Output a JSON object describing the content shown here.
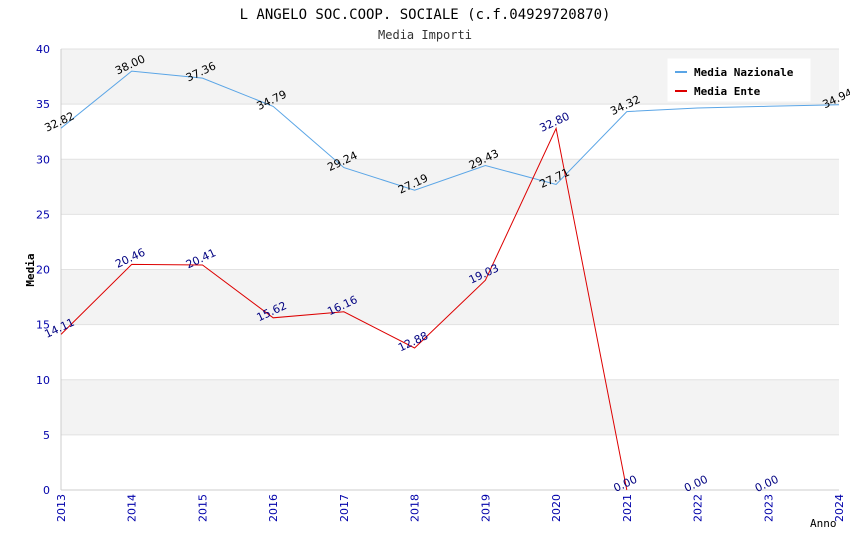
{
  "chart_data": {
    "type": "line",
    "title": "L ANGELO SOC.COOP. SOCIALE (c.f.04929720870)",
    "subtitle": "Media Importi",
    "xlabel": "Anno",
    "ylabel": "Media",
    "ylim": [
      0,
      40
    ],
    "yticks": [
      0,
      5,
      10,
      15,
      20,
      25,
      30,
      35,
      40
    ],
    "x": [
      "2013",
      "2014",
      "2015",
      "2016",
      "2017",
      "2018",
      "2019",
      "2020",
      "2021",
      "2022",
      "2023",
      "2024"
    ],
    "grid": true,
    "legend_position": "top-right",
    "series": [
      {
        "name": "Media Nazionale",
        "color": "#5aa5e6",
        "label_color": "#000000",
        "values": [
          32.82,
          38.0,
          37.36,
          34.79,
          29.24,
          27.19,
          29.43,
          27.71,
          34.32,
          34.65,
          34.8,
          34.94
        ],
        "labels": [
          "32.82",
          "38.00",
          "37.36",
          "34.79",
          "29.24",
          "27.19",
          "29.43",
          "27.71",
          "34.32",
          null,
          null,
          "34.94"
        ]
      },
      {
        "name": "Media Ente",
        "color": "#dd0000",
        "label_color": "#000080",
        "values": [
          14.11,
          20.46,
          20.41,
          15.62,
          16.16,
          12.88,
          19.03,
          32.8,
          0.0,
          null,
          null,
          null
        ],
        "labels": [
          "14.11",
          "20.46",
          "20.41",
          "15.62",
          "16.16",
          "12.88",
          "19.03",
          "32.80",
          "0.00",
          "0.00",
          "0.00",
          null
        ],
        "label_only_values": [
          null,
          null,
          null,
          null,
          null,
          null,
          null,
          null,
          null,
          0.0,
          0.0,
          null
        ]
      }
    ]
  }
}
